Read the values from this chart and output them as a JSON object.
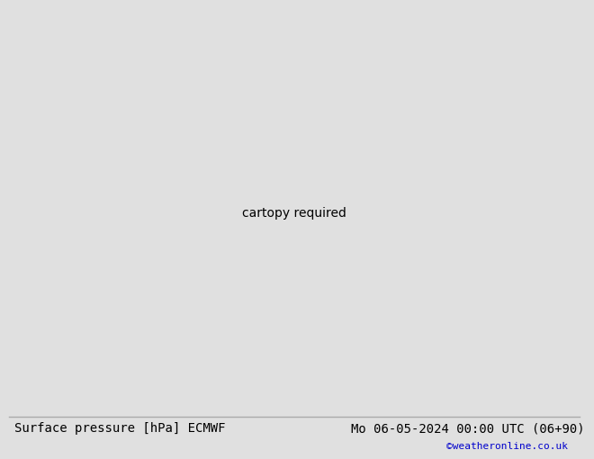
{
  "title_left": "Surface pressure [hPa] ECMWF",
  "title_right": "Mo 06-05-2024 00:00 UTC (06+90)",
  "credit": "©weatheronline.co.uk",
  "ocean_color": "#d4d4d4",
  "land_color": "#c8eaac",
  "border_color": "#888888",
  "coast_color": "#888888",
  "bottom_bar_color": "#e0e0e0",
  "isobar_blue": "#0000ff",
  "isobar_black": "#000000",
  "isobar_red": "#cc0000",
  "label_fontsize": 8,
  "title_fontsize": 10,
  "credit_fontsize": 8,
  "credit_color": "#0000cc",
  "lon_min": -25.0,
  "lon_max": 20.0,
  "lat_min": 42.0,
  "lat_max": 65.0
}
